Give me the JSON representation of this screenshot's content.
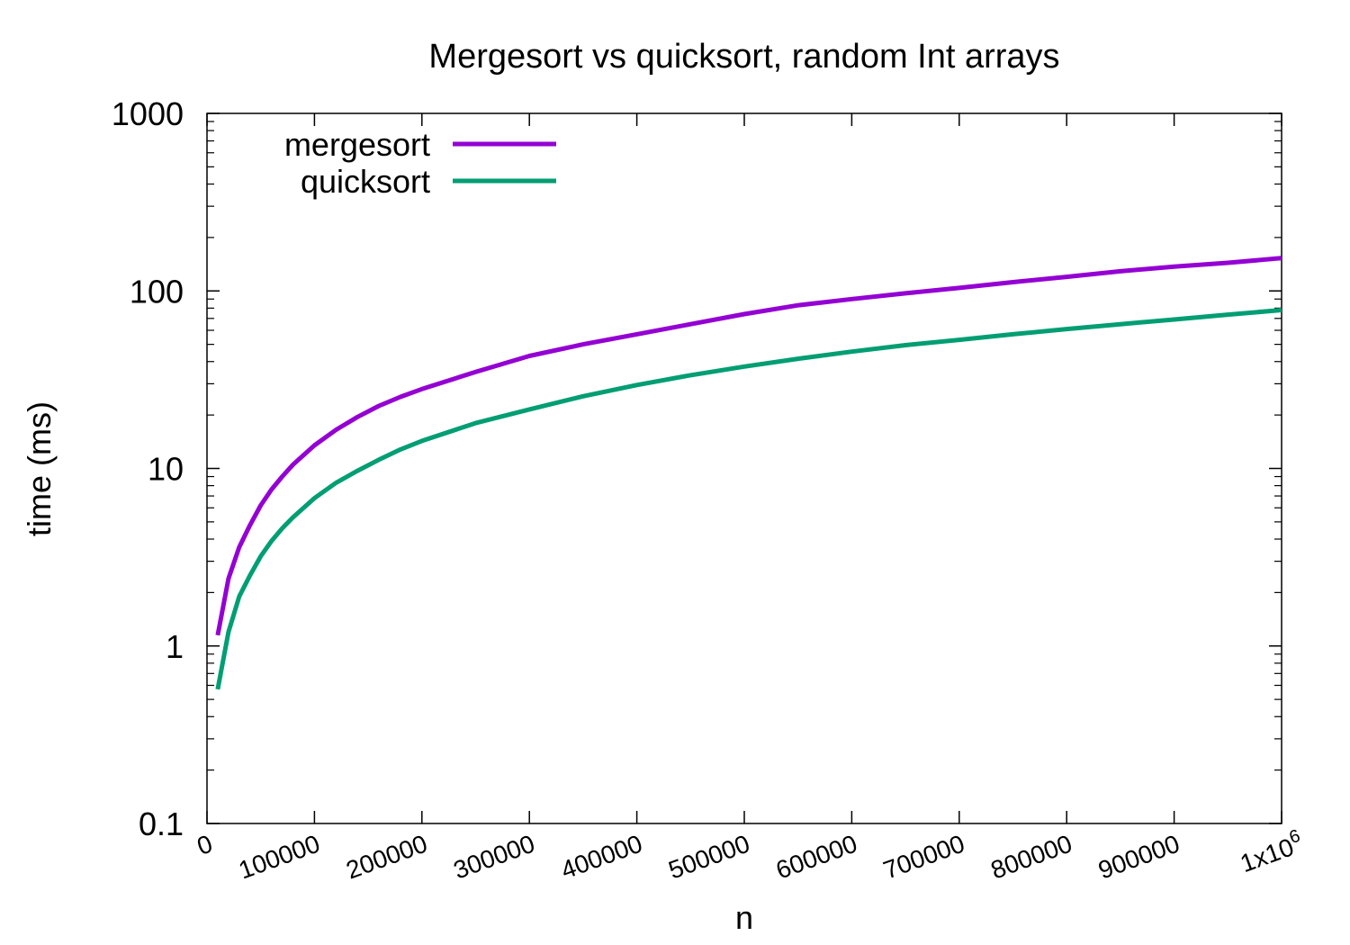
{
  "chart_data": {
    "type": "line",
    "title": "Mergesort vs quicksort, random Int arrays",
    "xlabel": "n",
    "ylabel": "time (ms)",
    "xlim": [
      0,
      1000000
    ],
    "ylim": [
      0.1,
      1000
    ],
    "yscale": "log",
    "grid": false,
    "legend_position": "top-left",
    "x_ticks": [
      {
        "value": 0,
        "label": "0"
      },
      {
        "value": 100000,
        "label": "100000"
      },
      {
        "value": 200000,
        "label": "200000"
      },
      {
        "value": 300000,
        "label": "300000"
      },
      {
        "value": 400000,
        "label": "400000"
      },
      {
        "value": 500000,
        "label": "500000"
      },
      {
        "value": 600000,
        "label": "600000"
      },
      {
        "value": 700000,
        "label": "700000"
      },
      {
        "value": 800000,
        "label": "800000"
      },
      {
        "value": 900000,
        "label": "900000"
      },
      {
        "value": 1000000,
        "label": "1x10",
        "sup": "6"
      }
    ],
    "y_ticks": [
      {
        "value": 0.1,
        "label": "0.1"
      },
      {
        "value": 1,
        "label": "1"
      },
      {
        "value": 10,
        "label": "10"
      },
      {
        "value": 100,
        "label": "100"
      },
      {
        "value": 1000,
        "label": "1000"
      }
    ],
    "x": [
      10000,
      20000,
      30000,
      40000,
      50000,
      60000,
      70000,
      80000,
      100000,
      120000,
      140000,
      160000,
      180000,
      200000,
      250000,
      300000,
      350000,
      400000,
      450000,
      500000,
      550000,
      600000,
      650000,
      700000,
      750000,
      800000,
      850000,
      900000,
      950000,
      1000000
    ],
    "series": [
      {
        "name": "mergesort",
        "color": "#9400d3",
        "values": [
          1.15,
          2.4,
          3.6,
          4.8,
          6.2,
          7.6,
          9.0,
          10.5,
          13.5,
          16.5,
          19.5,
          22.5,
          25.3,
          28.0,
          35.0,
          43.0,
          50.0,
          57.0,
          65.0,
          74.0,
          83.0,
          90.0,
          97.0,
          104.0,
          112.0,
          120.0,
          129.0,
          137.0,
          144.0,
          153.0
        ]
      },
      {
        "name": "quicksort",
        "color": "#009e73",
        "values": [
          0.57,
          1.2,
          1.9,
          2.5,
          3.2,
          3.9,
          4.6,
          5.3,
          6.8,
          8.3,
          9.7,
          11.2,
          12.8,
          14.3,
          18.0,
          21.5,
          25.5,
          29.5,
          33.5,
          37.5,
          41.5,
          45.5,
          49.5,
          53.0,
          57.0,
          61.0,
          65.0,
          69.0,
          73.5,
          78.0
        ]
      }
    ]
  }
}
